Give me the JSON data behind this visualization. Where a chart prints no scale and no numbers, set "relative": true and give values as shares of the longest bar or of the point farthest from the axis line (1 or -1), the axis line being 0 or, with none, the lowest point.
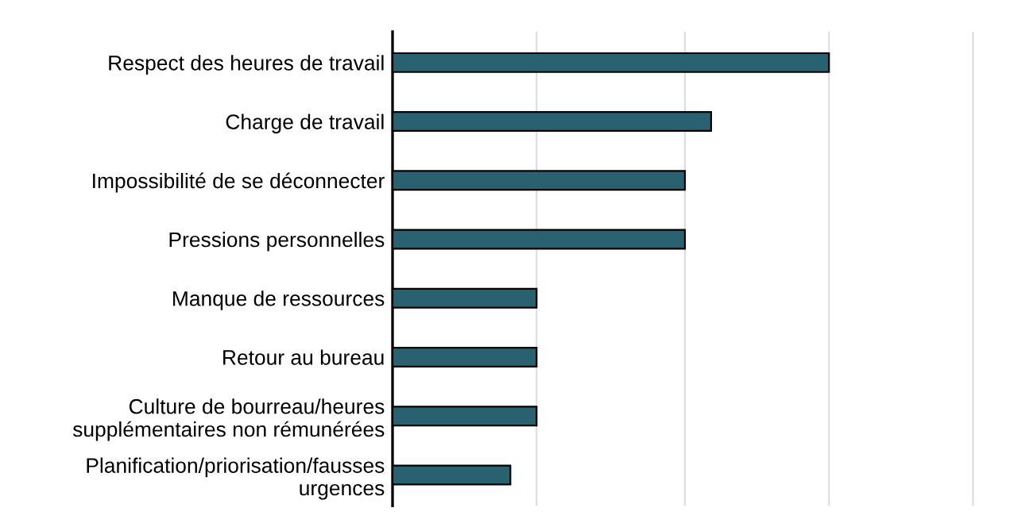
{
  "chart_data": {
    "type": "bar",
    "orientation": "horizontal",
    "relative": true,
    "categories": [
      "Respect des heures de travail",
      "Charge de travail",
      "Impossibilité de se déconnecter",
      "Pressions personnelles",
      "Manque de ressources",
      "Retour au bureau",
      "Culture de bourreau/heures\nsupplémentaires non rémunérées",
      "Planification/priorisation/fausses\nurgences"
    ],
    "values": [
      1,
      0.73,
      0.67,
      0.67,
      0.33,
      0.33,
      0.33,
      0.27
    ],
    "ref_lines": [
      {
        "axis": "x",
        "value": 0.33,
        "color": "#dddddd"
      },
      {
        "axis": "x",
        "value": 0.67,
        "color": "#dddddd"
      },
      {
        "axis": "x",
        "value": 1,
        "color": "#dddddd"
      },
      {
        "axis": "x",
        "value": 1.33,
        "color": "#dddddd"
      }
    ],
    "color": "#2a6170"
  }
}
